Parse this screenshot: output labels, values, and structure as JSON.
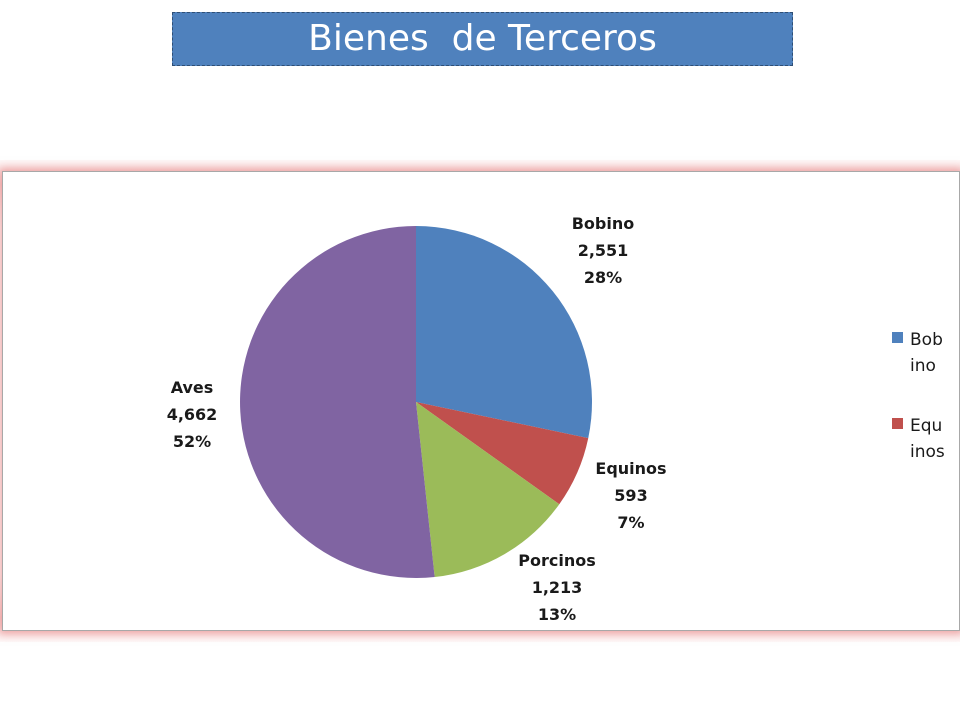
{
  "slide": {
    "title": "Bienes  de Terceros"
  },
  "chart_data": {
    "type": "pie",
    "title": "",
    "categories": [
      "Bobino",
      "Equinos",
      "Porcinos",
      "Aves"
    ],
    "values": [
      2551,
      593,
      1213,
      4662
    ],
    "value_labels": [
      "2,551",
      "593",
      "1,213",
      "4,662"
    ],
    "percent_labels": [
      "28%",
      "7%",
      "13%",
      "52%"
    ],
    "colors": [
      "#4f81bd",
      "#c0504d",
      "#9bbb59",
      "#8064a2"
    ],
    "legend": {
      "placement": "right",
      "entries": [
        {
          "lines": [
            "Bob",
            "ino"
          ],
          "color": "#4f81bd"
        },
        {
          "lines": [
            "Equ",
            "inos"
          ],
          "color": "#c0504d"
        }
      ]
    }
  }
}
